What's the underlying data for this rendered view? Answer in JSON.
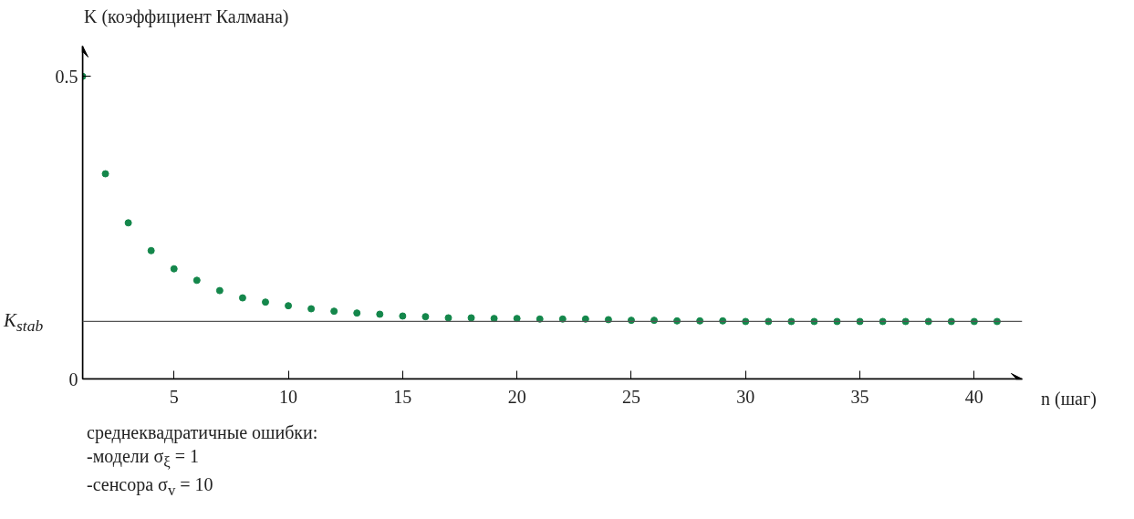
{
  "chart_data": {
    "type": "scatter",
    "ylabel": "K (коэффициент Калмана)",
    "xlabel": "n (шаг)",
    "x": [
      1,
      2,
      3,
      4,
      5,
      6,
      7,
      8,
      9,
      10,
      11,
      12,
      13,
      14,
      15,
      16,
      17,
      18,
      19,
      20,
      21,
      22,
      23,
      24,
      25,
      26,
      27,
      28,
      29,
      30,
      31,
      32,
      33,
      34,
      35,
      36,
      37,
      38,
      39,
      40,
      41
    ],
    "values": [
      0.5,
      0.339,
      0.258,
      0.212,
      0.182,
      0.163,
      0.146,
      0.134,
      0.127,
      0.121,
      0.116,
      0.112,
      0.109,
      0.107,
      0.104,
      0.103,
      0.101,
      0.101,
      0.1,
      0.1,
      0.099,
      0.099,
      0.099,
      0.098,
      0.097,
      0.097,
      0.096,
      0.096,
      0.096,
      0.095,
      0.095,
      0.095,
      0.095,
      0.095,
      0.095,
      0.095,
      0.095,
      0.095,
      0.095,
      0.095,
      0.095
    ],
    "color": "#14874b",
    "marker": "circle",
    "xlim": [
      1,
      42.1
    ],
    "ylim": [
      0,
      0.55
    ],
    "xticks": [
      5,
      10,
      15,
      20,
      25,
      30,
      35,
      40
    ],
    "yticks": [
      0,
      0.5
    ],
    "ref_lines": [
      {
        "axis": "y",
        "value": 0.095,
        "label": "K$_{stab}$",
        "color": "#555555"
      }
    ],
    "annotations": [
      "среднеквадратичные ошибки:",
      "-модели σ$_{ξ}$ = 1",
      "-сенсора σ$_{v}$ = 10"
    ],
    "grid": false
  }
}
